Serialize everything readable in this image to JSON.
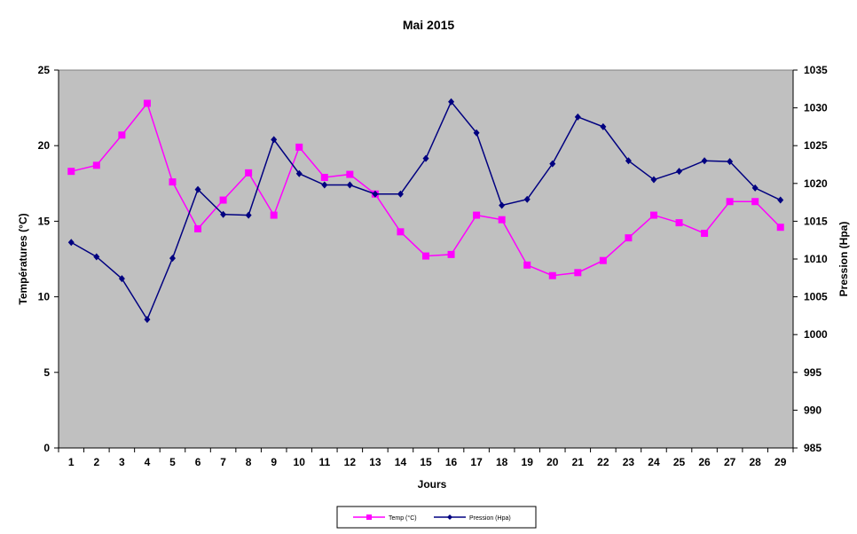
{
  "chart_data": {
    "type": "line",
    "title": "Mai 2015",
    "xlabel": "Jours",
    "ylabel_left": "Températures (°C)",
    "ylabel_right": "Pression (Hpa)",
    "ylim_left": [
      0,
      25
    ],
    "yticks_left": [
      0,
      5,
      10,
      15,
      20,
      25
    ],
    "ylim_right": [
      985,
      1035
    ],
    "yticks_right": [
      985,
      990,
      995,
      1000,
      1005,
      1010,
      1015,
      1020,
      1025,
      1030,
      1035
    ],
    "x": [
      1,
      2,
      3,
      4,
      5,
      6,
      7,
      8,
      9,
      10,
      11,
      12,
      13,
      14,
      15,
      16,
      17,
      18,
      19,
      20,
      21,
      22,
      23,
      24,
      25,
      26,
      27,
      28,
      29
    ],
    "plot_background": "#C0C0C0",
    "legend_position": "bottom",
    "series": [
      {
        "name": "Temp (°C)",
        "axis": "left",
        "color": "#FF00FF",
        "marker": "square",
        "values": [
          18.3,
          18.7,
          20.7,
          22.8,
          17.6,
          14.5,
          16.4,
          18.2,
          15.4,
          19.9,
          17.9,
          18.1,
          16.8,
          14.3,
          12.7,
          12.8,
          15.4,
          15.1,
          12.1,
          11.4,
          11.6,
          12.4,
          13.9,
          15.4,
          14.9,
          14.2,
          16.3,
          16.3,
          14.6
        ]
      },
      {
        "name": "Pression (Hpa)",
        "axis": "right",
        "color": "#000080",
        "marker": "diamond",
        "values": [
          1012.2,
          1010.3,
          1007.4,
          1002.0,
          1010.1,
          1019.2,
          1015.9,
          1015.8,
          1025.8,
          1021.3,
          1019.8,
          1019.8,
          1018.6,
          1018.6,
          1023.3,
          1030.8,
          1026.7,
          1017.1,
          1017.9,
          1022.6,
          1028.8,
          1027.5,
          1023.0,
          1020.5,
          1021.6,
          1023.0,
          1022.9,
          1019.4,
          1017.8
        ]
      }
    ]
  }
}
